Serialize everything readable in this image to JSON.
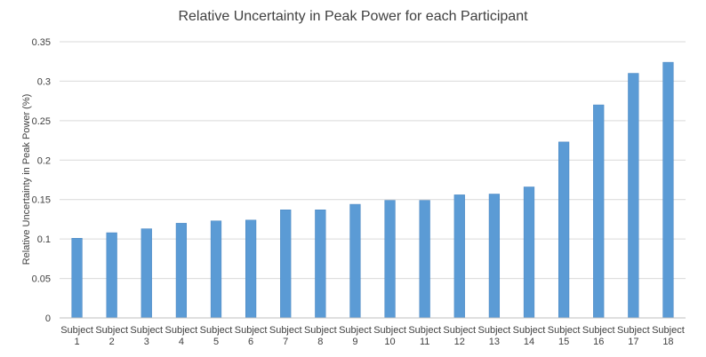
{
  "chart_data": {
    "type": "bar",
    "title": "Relative Uncertainty in Peak Power for each Participant",
    "xlabel": "",
    "ylabel": "Relative Uncertainty in Peak Power (%)",
    "ylim": [
      0,
      0.35
    ],
    "yticks": [
      "0",
      "0.05",
      "0.1",
      "0.15",
      "0.2",
      "0.25",
      "0.3",
      "0.35"
    ],
    "grid": true,
    "legend": "none",
    "bar_color": "#5b9bd5",
    "categories": [
      [
        "Subject",
        "1"
      ],
      [
        "Subject",
        "2"
      ],
      [
        "Subject",
        "3"
      ],
      [
        "Subject",
        "4"
      ],
      [
        "Subject",
        "5"
      ],
      [
        "Subject",
        "6"
      ],
      [
        "Subject",
        "7"
      ],
      [
        "Subject",
        "8"
      ],
      [
        "Subject",
        "9"
      ],
      [
        "Subject",
        "10"
      ],
      [
        "Subject",
        "11"
      ],
      [
        "Subject",
        "12"
      ],
      [
        "Subject",
        "13"
      ],
      [
        "Subject",
        "14"
      ],
      [
        "Subject",
        "15"
      ],
      [
        "Subject",
        "16"
      ],
      [
        "Subject",
        "17"
      ],
      [
        "Subject",
        "18"
      ]
    ],
    "values": [
      0.101,
      0.108,
      0.113,
      0.12,
      0.123,
      0.124,
      0.137,
      0.137,
      0.144,
      0.149,
      0.149,
      0.156,
      0.157,
      0.166,
      0.223,
      0.27,
      0.31,
      0.324
    ]
  }
}
